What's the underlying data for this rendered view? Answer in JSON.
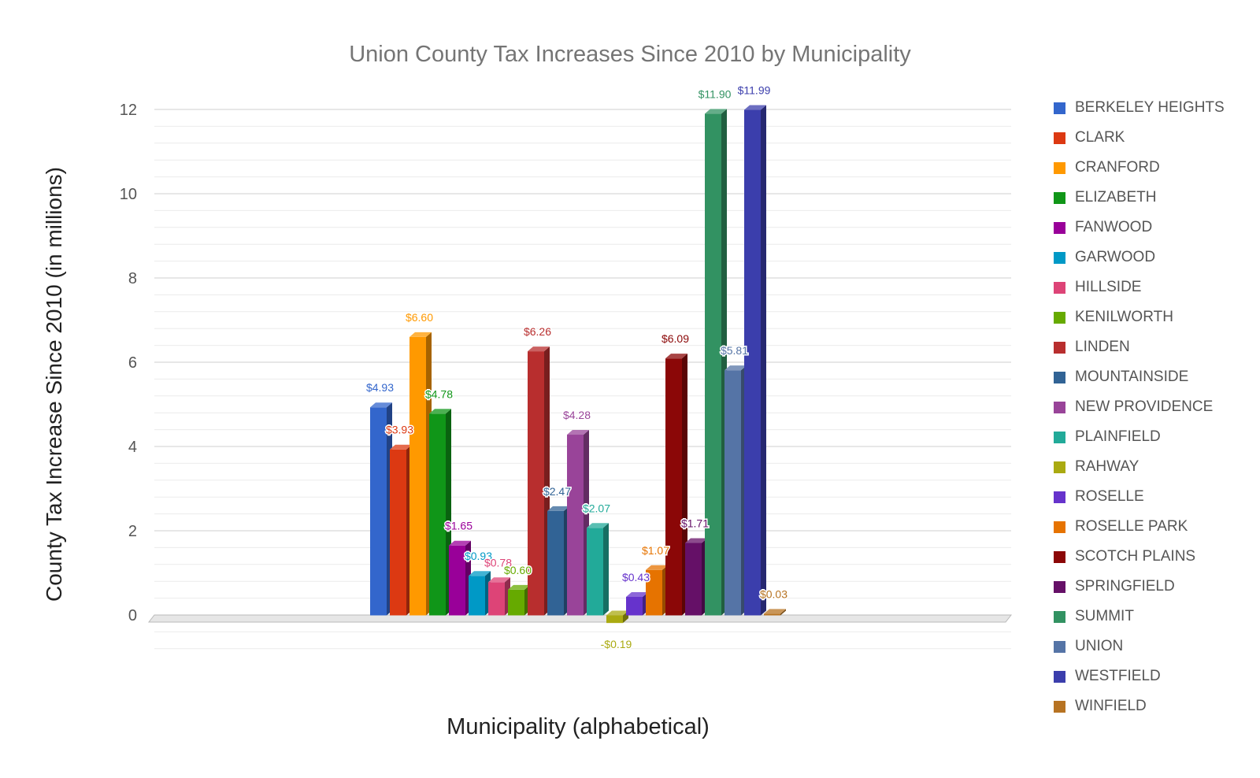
{
  "chart_data": {
    "type": "bar",
    "title": "Union County Tax Increases Since 2010 by Municipality",
    "xlabel": "Municipality (alphabetical)",
    "ylabel": "County Tax Increase Since 2010 (in millions)",
    "ylim": [
      -0.8,
      12
    ],
    "yticks": [
      0,
      2,
      4,
      6,
      8,
      10,
      12
    ],
    "grid": true,
    "legend_position": "right",
    "series": [
      {
        "name": "BERKELEY HEIGHTS",
        "value": 4.93,
        "label": "$4.93",
        "color": "#3366cc"
      },
      {
        "name": "CLARK",
        "value": 3.93,
        "label": "$3.93",
        "color": "#dc3912"
      },
      {
        "name": "CRANFORD",
        "value": 6.6,
        "label": "$6.60",
        "color": "#ff9900"
      },
      {
        "name": "ELIZABETH",
        "value": 4.78,
        "label": "$4.78",
        "color": "#109618"
      },
      {
        "name": "FANWOOD",
        "value": 1.65,
        "label": "$1.65",
        "color": "#990099"
      },
      {
        "name": "GARWOOD",
        "value": 0.93,
        "label": "$0.93",
        "color": "#0099c6"
      },
      {
        "name": "HILLSIDE",
        "value": 0.78,
        "label": "$0.78",
        "color": "#dd4477"
      },
      {
        "name": "KENILWORTH",
        "value": 0.6,
        "label": "$0.60",
        "color": "#66aa00"
      },
      {
        "name": "LINDEN",
        "value": 6.26,
        "label": "$6.26",
        "color": "#b82e2e"
      },
      {
        "name": "MOUNTAINSIDE",
        "value": 2.47,
        "label": "$2.47",
        "color": "#316395"
      },
      {
        "name": "NEW PROVIDENCE",
        "value": 4.28,
        "label": "$4.28",
        "color": "#994499"
      },
      {
        "name": "PLAINFIELD",
        "value": 2.07,
        "label": "$2.07",
        "color": "#22aa99"
      },
      {
        "name": "RAHWAY",
        "value": -0.19,
        "label": "-$0.19",
        "color": "#aaaa11"
      },
      {
        "name": "ROSELLE",
        "value": 0.43,
        "label": "$0.43",
        "color": "#6633cc"
      },
      {
        "name": "ROSELLE PARK",
        "value": 1.07,
        "label": "$1.07",
        "color": "#e67300"
      },
      {
        "name": "SCOTCH PLAINS",
        "value": 6.09,
        "label": "$6.09",
        "color": "#8b0707"
      },
      {
        "name": "SPRINGFIELD",
        "value": 1.71,
        "label": "$1.71",
        "color": "#651067"
      },
      {
        "name": "SUMMIT",
        "value": 11.9,
        "label": "$11.90",
        "color": "#329262"
      },
      {
        "name": "UNION",
        "value": 5.81,
        "label": "$5.81",
        "color": "#5574a6"
      },
      {
        "name": "WESTFIELD",
        "value": 11.99,
        "label": "$11.99",
        "color": "#3b3eac"
      },
      {
        "name": "WINFIELD",
        "value": 0.03,
        "label": "$0.03",
        "color": "#b77322"
      }
    ]
  }
}
